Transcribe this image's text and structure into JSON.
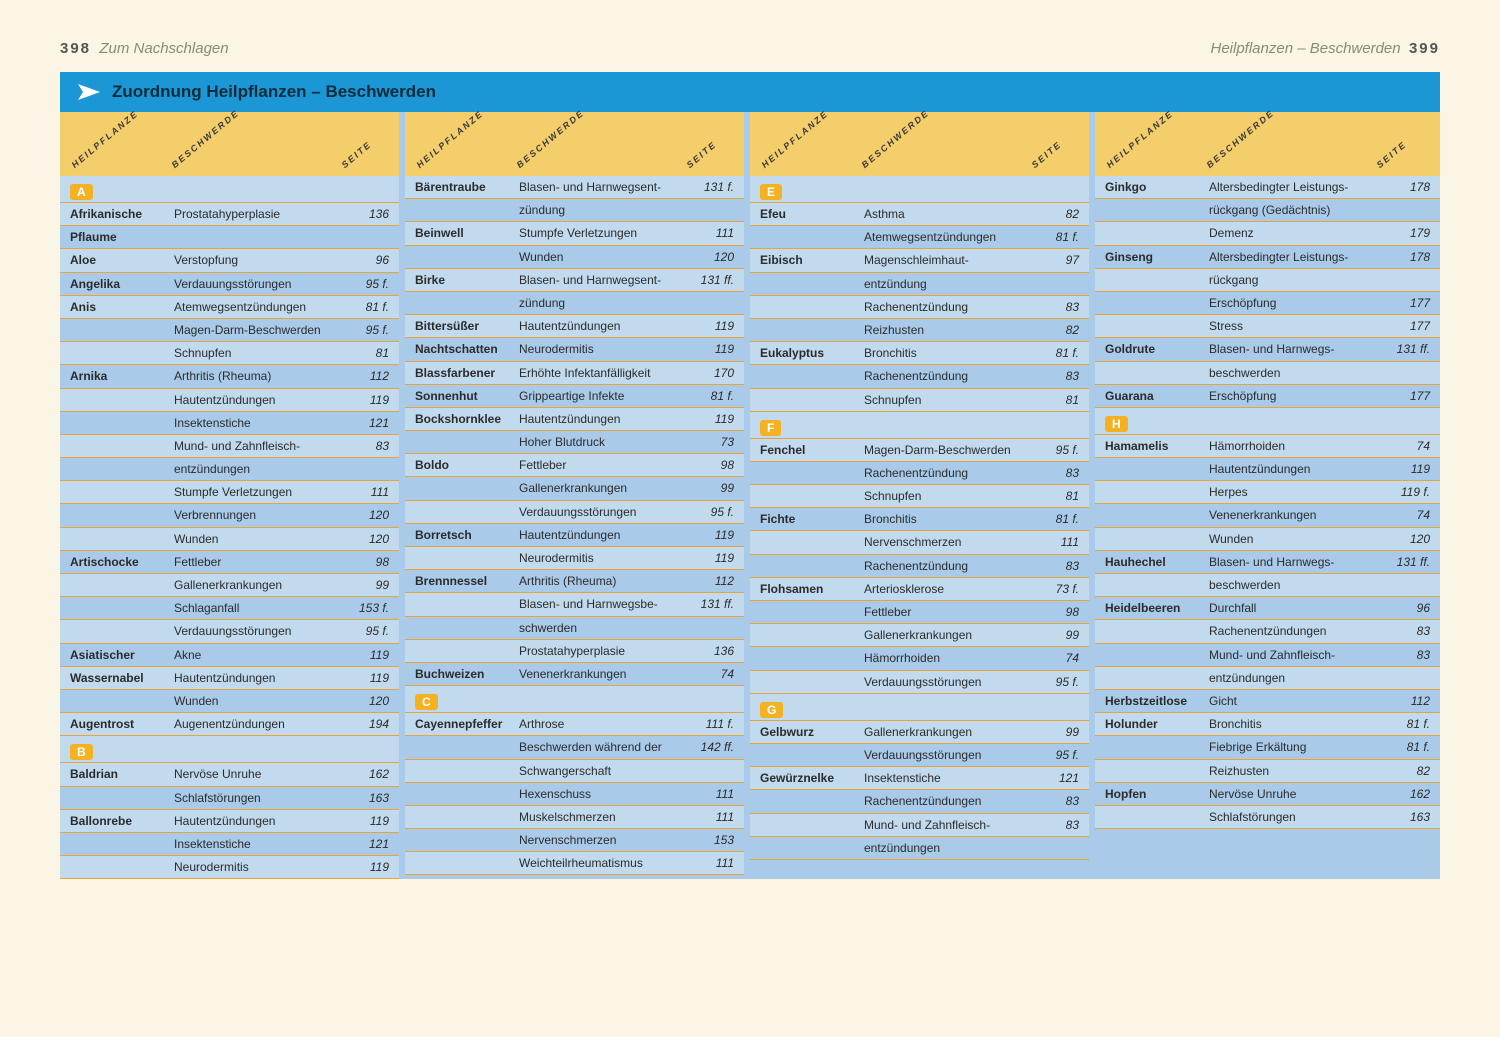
{
  "header": {
    "leftPageNum": "398",
    "leftText": "Zum Nachschlagen",
    "rightText": "Heilpflanzen – Beschwerden",
    "rightPageNum": "399"
  },
  "title": "Zuordnung Heilpflanzen – Beschwerden",
  "colLabels": {
    "c1": "HEILPFLANZE",
    "c2": "BESCHWERDE",
    "c3": "SEITE"
  },
  "columns": [
    {
      "items": [
        {
          "type": "letter",
          "label": "A"
        },
        {
          "type": "row",
          "plant": "Afrikanische",
          "ailm": "Prostatahyperplasie",
          "page": "136"
        },
        {
          "type": "row",
          "plant": "Pflaume",
          "ailm": "",
          "page": ""
        },
        {
          "type": "row",
          "plant": "Aloe",
          "ailm": "Verstopfung",
          "page": "96"
        },
        {
          "type": "row",
          "plant": "Angelika",
          "ailm": "Verdauungsstörungen",
          "page": "95 f."
        },
        {
          "type": "row",
          "plant": "Anis",
          "ailm": "Atemwegsentzündungen",
          "page": "81 f."
        },
        {
          "type": "row",
          "plant": "",
          "ailm": "Magen-Darm-Beschwerden",
          "page": "95 f."
        },
        {
          "type": "row",
          "plant": "",
          "ailm": "Schnupfen",
          "page": "81"
        },
        {
          "type": "row",
          "plant": "Arnika",
          "ailm": "Arthritis (Rheuma)",
          "page": "112"
        },
        {
          "type": "row",
          "plant": "",
          "ailm": "Hautentzündungen",
          "page": "119"
        },
        {
          "type": "row",
          "plant": "",
          "ailm": "Insektenstiche",
          "page": "121"
        },
        {
          "type": "row",
          "plant": "",
          "ailm": "Mund- und Zahnfleisch-",
          "page": "83"
        },
        {
          "type": "row",
          "plant": "",
          "ailm": "entzündungen",
          "page": ""
        },
        {
          "type": "row",
          "plant": "",
          "ailm": "Stumpfe Verletzungen",
          "page": "111"
        },
        {
          "type": "row",
          "plant": "",
          "ailm": "Verbrennungen",
          "page": "120"
        },
        {
          "type": "row",
          "plant": "",
          "ailm": "Wunden",
          "page": "120"
        },
        {
          "type": "row",
          "plant": "Artischocke",
          "ailm": "Fettleber",
          "page": "98"
        },
        {
          "type": "row",
          "plant": "",
          "ailm": "Gallenerkrankungen",
          "page": "99"
        },
        {
          "type": "row",
          "plant": "",
          "ailm": "Schlaganfall",
          "page": "153 f."
        },
        {
          "type": "row",
          "plant": "",
          "ailm": "Verdauungsstörungen",
          "page": "95 f."
        },
        {
          "type": "row",
          "plant": "Asiatischer",
          "ailm": "Akne",
          "page": "119"
        },
        {
          "type": "row",
          "plant": "Wassernabel",
          "ailm": "Hautentzündungen",
          "page": "119"
        },
        {
          "type": "row",
          "plant": "",
          "ailm": "Wunden",
          "page": "120"
        },
        {
          "type": "row",
          "plant": "Augentrost",
          "ailm": "Augenentzündungen",
          "page": "194"
        },
        {
          "type": "letter",
          "label": "B"
        },
        {
          "type": "row",
          "plant": "Baldrian",
          "ailm": "Nervöse Unruhe",
          "page": "162"
        },
        {
          "type": "row",
          "plant": "",
          "ailm": "Schlafstörungen",
          "page": "163"
        },
        {
          "type": "row",
          "plant": "Ballonrebe",
          "ailm": "Hautentzündungen",
          "page": "119"
        },
        {
          "type": "row",
          "plant": "",
          "ailm": "Insektenstiche",
          "page": "121"
        },
        {
          "type": "row",
          "plant": "",
          "ailm": "Neurodermitis",
          "page": "119"
        }
      ]
    },
    {
      "items": [
        {
          "type": "row",
          "plant": "Bärentraube",
          "ailm": "Blasen- und Harnwegsent-",
          "page": "131 f."
        },
        {
          "type": "row",
          "plant": "",
          "ailm": "zündung",
          "page": ""
        },
        {
          "type": "row",
          "plant": "Beinwell",
          "ailm": "Stumpfe Verletzungen",
          "page": "111"
        },
        {
          "type": "row",
          "plant": "",
          "ailm": "Wunden",
          "page": "120"
        },
        {
          "type": "row",
          "plant": "Birke",
          "ailm": "Blasen- und Harnwegsent-",
          "page": "131 ff."
        },
        {
          "type": "row",
          "plant": "",
          "ailm": "zündung",
          "page": ""
        },
        {
          "type": "row",
          "plant": "Bittersüßer",
          "ailm": "Hautentzündungen",
          "page": "119"
        },
        {
          "type": "row",
          "plant": "Nachtschatten",
          "ailm": "Neurodermitis",
          "page": "119"
        },
        {
          "type": "row",
          "plant": "Blassfarbener",
          "ailm": "Erhöhte Infektanfälligkeit",
          "page": "170"
        },
        {
          "type": "row",
          "plant": "Sonnenhut",
          "ailm": "Grippeartige Infekte",
          "page": "81 f."
        },
        {
          "type": "row",
          "plant": "Bockshornklee",
          "ailm": "Hautentzündungen",
          "page": "119"
        },
        {
          "type": "row",
          "plant": "",
          "ailm": "Hoher Blutdruck",
          "page": "73"
        },
        {
          "type": "row",
          "plant": "Boldo",
          "ailm": "Fettleber",
          "page": "98"
        },
        {
          "type": "row",
          "plant": "",
          "ailm": "Gallenerkrankungen",
          "page": "99"
        },
        {
          "type": "row",
          "plant": "",
          "ailm": "Verdauungsstörungen",
          "page": "95 f."
        },
        {
          "type": "row",
          "plant": "Borretsch",
          "ailm": "Hautentzündungen",
          "page": "119"
        },
        {
          "type": "row",
          "plant": "",
          "ailm": "Neurodermitis",
          "page": "119"
        },
        {
          "type": "row",
          "plant": "Brennnessel",
          "ailm": "Arthritis (Rheuma)",
          "page": "112"
        },
        {
          "type": "row",
          "plant": "",
          "ailm": "Blasen- und Harnwegsbe-",
          "page": "131 ff."
        },
        {
          "type": "row",
          "plant": "",
          "ailm": "schwerden",
          "page": ""
        },
        {
          "type": "row",
          "plant": "",
          "ailm": "Prostatahyperplasie",
          "page": "136"
        },
        {
          "type": "row",
          "plant": "Buchweizen",
          "ailm": "Venenerkrankungen",
          "page": "74"
        },
        {
          "type": "letter",
          "label": "C"
        },
        {
          "type": "row",
          "plant": "Cayennepfeffer",
          "ailm": "Arthrose",
          "page": "111 f."
        },
        {
          "type": "row",
          "plant": "",
          "ailm": "Beschwerden während der",
          "page": "142 ff."
        },
        {
          "type": "row",
          "plant": "",
          "ailm": "Schwangerschaft",
          "page": ""
        },
        {
          "type": "row",
          "plant": "",
          "ailm": "Hexenschuss",
          "page": "111"
        },
        {
          "type": "row",
          "plant": "",
          "ailm": "Muskelschmerzen",
          "page": "111"
        },
        {
          "type": "row",
          "plant": "",
          "ailm": "Nervenschmerzen",
          "page": "153"
        },
        {
          "type": "row",
          "plant": "",
          "ailm": "Weichteilrheumatismus",
          "page": "111"
        }
      ]
    },
    {
      "items": [
        {
          "type": "letter",
          "label": "E"
        },
        {
          "type": "row",
          "plant": "Efeu",
          "ailm": "Asthma",
          "page": "82"
        },
        {
          "type": "row",
          "plant": "",
          "ailm": "Atemwegsentzündungen",
          "page": "81 f."
        },
        {
          "type": "row",
          "plant": "Eibisch",
          "ailm": "Magenschleimhaut-",
          "page": "97"
        },
        {
          "type": "row",
          "plant": "",
          "ailm": "entzündung",
          "page": ""
        },
        {
          "type": "row",
          "plant": "",
          "ailm": "Rachenentzündung",
          "page": "83"
        },
        {
          "type": "row",
          "plant": "",
          "ailm": "Reizhusten",
          "page": "82"
        },
        {
          "type": "row",
          "plant": "Eukalyptus",
          "ailm": "Bronchitis",
          "page": "81 f."
        },
        {
          "type": "row",
          "plant": "",
          "ailm": "Rachenentzündung",
          "page": "83"
        },
        {
          "type": "row",
          "plant": "",
          "ailm": "Schnupfen",
          "page": "81"
        },
        {
          "type": "letter",
          "label": "F"
        },
        {
          "type": "row",
          "plant": "Fenchel",
          "ailm": "Magen-Darm-Beschwerden",
          "page": "95 f."
        },
        {
          "type": "row",
          "plant": "",
          "ailm": "Rachenentzündung",
          "page": "83"
        },
        {
          "type": "row",
          "plant": "",
          "ailm": "Schnupfen",
          "page": "81"
        },
        {
          "type": "row",
          "plant": "Fichte",
          "ailm": "Bronchitis",
          "page": "81 f."
        },
        {
          "type": "row",
          "plant": "",
          "ailm": "Nervenschmerzen",
          "page": "111"
        },
        {
          "type": "row",
          "plant": "",
          "ailm": "Rachenentzündung",
          "page": "83"
        },
        {
          "type": "row",
          "plant": "Flohsamen",
          "ailm": "Arteriosklerose",
          "page": "73 f."
        },
        {
          "type": "row",
          "plant": "",
          "ailm": "Fettleber",
          "page": "98"
        },
        {
          "type": "row",
          "plant": "",
          "ailm": "Gallenerkrankungen",
          "page": "99"
        },
        {
          "type": "row",
          "plant": "",
          "ailm": "Hämorrhoiden",
          "page": "74"
        },
        {
          "type": "row",
          "plant": "",
          "ailm": "Verdauungsstörungen",
          "page": "95 f."
        },
        {
          "type": "letter",
          "label": "G"
        },
        {
          "type": "row",
          "plant": "Gelbwurz",
          "ailm": "Gallenerkrankungen",
          "page": "99"
        },
        {
          "type": "row",
          "plant": "",
          "ailm": "Verdauungsstörungen",
          "page": "95 f."
        },
        {
          "type": "row",
          "plant": "Gewürznelke",
          "ailm": "Insektenstiche",
          "page": "121"
        },
        {
          "type": "row",
          "plant": "",
          "ailm": "Rachenentzündungen",
          "page": "83"
        },
        {
          "type": "row",
          "plant": "",
          "ailm": "Mund- und Zahnfleisch-",
          "page": "83"
        },
        {
          "type": "row",
          "plant": "",
          "ailm": "entzündungen",
          "page": ""
        }
      ]
    },
    {
      "items": [
        {
          "type": "row",
          "plant": "Ginkgo",
          "ailm": "Altersbedingter Leistungs-",
          "page": "178"
        },
        {
          "type": "row",
          "plant": "",
          "ailm": "rückgang (Gedächtnis)",
          "page": ""
        },
        {
          "type": "row",
          "plant": "",
          "ailm": "Demenz",
          "page": "179"
        },
        {
          "type": "row",
          "plant": "Ginseng",
          "ailm": "Altersbedingter Leistungs-",
          "page": "178"
        },
        {
          "type": "row",
          "plant": "",
          "ailm": "rückgang",
          "page": ""
        },
        {
          "type": "row",
          "plant": "",
          "ailm": "Erschöpfung",
          "page": "177"
        },
        {
          "type": "row",
          "plant": "",
          "ailm": "Stress",
          "page": "177"
        },
        {
          "type": "row",
          "plant": "Goldrute",
          "ailm": "Blasen- und Harnwegs-",
          "page": "131 ff."
        },
        {
          "type": "row",
          "plant": "",
          "ailm": "beschwerden",
          "page": ""
        },
        {
          "type": "row",
          "plant": "Guarana",
          "ailm": "Erschöpfung",
          "page": "177"
        },
        {
          "type": "letter",
          "label": "H"
        },
        {
          "type": "row",
          "plant": "Hamamelis",
          "ailm": "Hämorrhoiden",
          "page": "74"
        },
        {
          "type": "row",
          "plant": "",
          "ailm": "Hautentzündungen",
          "page": "119"
        },
        {
          "type": "row",
          "plant": "",
          "ailm": "Herpes",
          "page": "119 f."
        },
        {
          "type": "row",
          "plant": "",
          "ailm": "Venenerkrankungen",
          "page": "74"
        },
        {
          "type": "row",
          "plant": "",
          "ailm": "Wunden",
          "page": "120"
        },
        {
          "type": "row",
          "plant": "Hauhechel",
          "ailm": "Blasen- und Harnwegs-",
          "page": "131 ff."
        },
        {
          "type": "row",
          "plant": "",
          "ailm": "beschwerden",
          "page": ""
        },
        {
          "type": "row",
          "plant": "Heidelbeeren",
          "ailm": "Durchfall",
          "page": "96"
        },
        {
          "type": "row",
          "plant": "",
          "ailm": "Rachenentzündungen",
          "page": "83"
        },
        {
          "type": "row",
          "plant": "",
          "ailm": "Mund- und Zahnfleisch-",
          "page": "83"
        },
        {
          "type": "row",
          "plant": "",
          "ailm": "entzündungen",
          "page": ""
        },
        {
          "type": "row",
          "plant": "Herbstzeitlose",
          "ailm": "Gicht",
          "page": "112"
        },
        {
          "type": "row",
          "plant": "Holunder",
          "ailm": "Bronchitis",
          "page": "81 f."
        },
        {
          "type": "row",
          "plant": "",
          "ailm": "Fiebrige Erkältung",
          "page": "81 f."
        },
        {
          "type": "row",
          "plant": "",
          "ailm": "Reizhusten",
          "page": "82"
        },
        {
          "type": "row",
          "plant": "Hopfen",
          "ailm": "Nervöse Unruhe",
          "page": "162"
        },
        {
          "type": "row",
          "plant": "",
          "ailm": "Schlafstörungen",
          "page": "163"
        }
      ]
    }
  ]
}
